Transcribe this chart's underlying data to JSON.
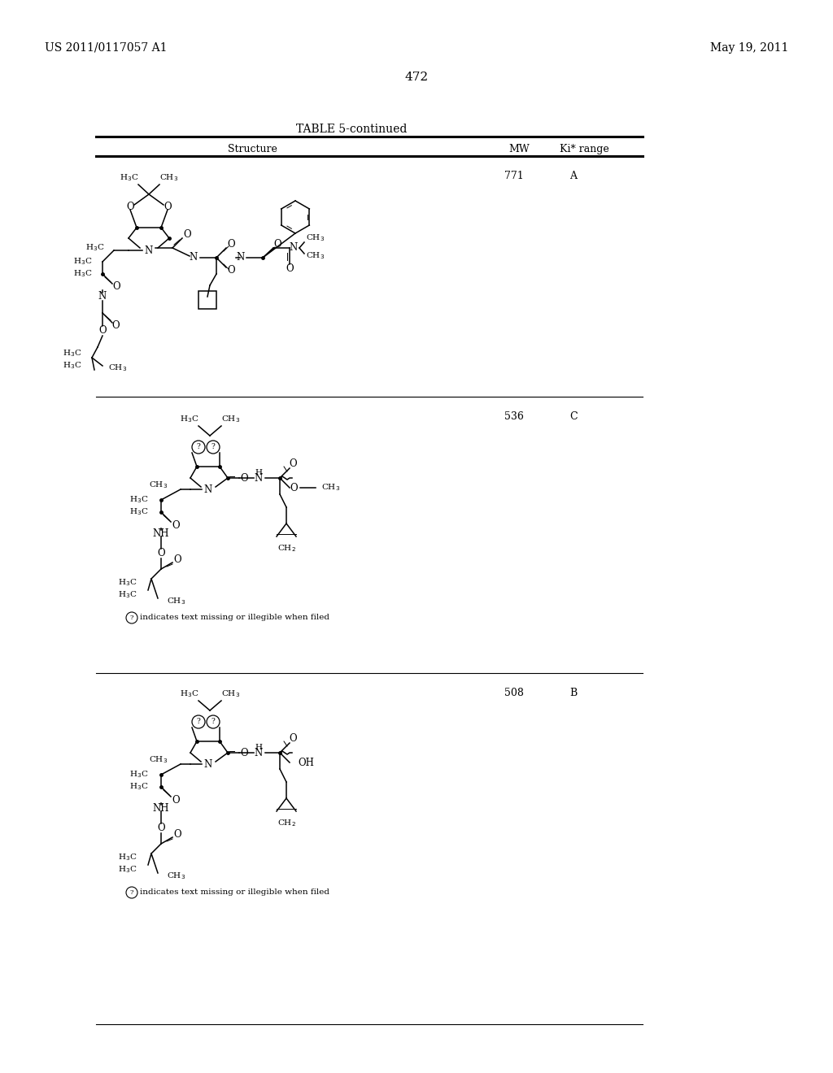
{
  "left_header": "US 2011/0117057 A1",
  "right_header": "May 19, 2011",
  "page_number": "472",
  "table_title": "TABLE 5-continued",
  "col_structure": "Structure",
  "col_mw": "MW",
  "col_ki": "Ki* range",
  "row1_mw": "771",
  "row1_ki": "A",
  "row2_mw": "536",
  "row2_ki": "C",
  "row3_mw": "508",
  "row3_ki": "B",
  "footnote": "indicates text missing or illegible when filed"
}
